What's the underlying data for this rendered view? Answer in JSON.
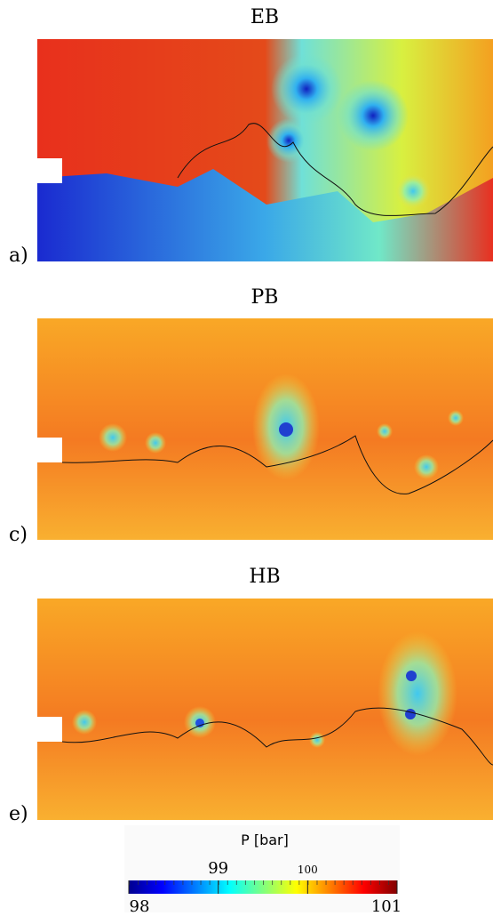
{
  "panels": [
    {
      "title": "EB",
      "label": "a)"
    },
    {
      "title": "PB",
      "label": "c)"
    },
    {
      "title": "HB",
      "label": "e)"
    }
  ],
  "colorbar": {
    "title": "P [bar]",
    "lim": [
      98,
      101
    ],
    "ticks": [
      98,
      99,
      100,
      101
    ]
  }
}
